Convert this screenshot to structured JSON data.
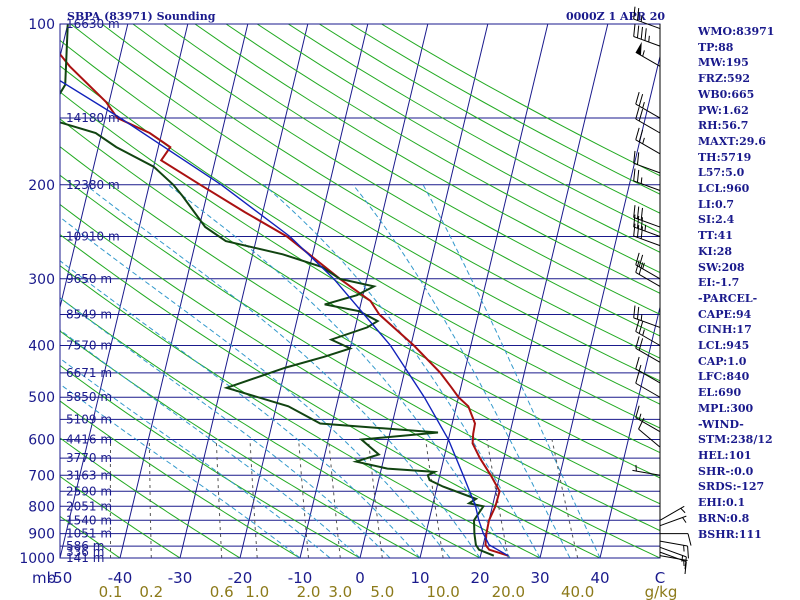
{
  "header": {
    "station_title": "SBPA (83971) Sounding",
    "time_title": "0000Z  1 APR 20"
  },
  "colors": {
    "isobar": "#1a1a8c",
    "isotherm": "#1a1a8c",
    "dry_adiabat": "#22aa22",
    "moist_adiabat": "#3399cc",
    "mixing_ratio": "#555555",
    "temperature": "#aa1111",
    "dewpoint": "#114411",
    "parcel": "#1122bb",
    "wind": "#000000"
  },
  "indices": [
    "WMO:83971",
    "TP:88",
    "MW:195",
    "FRZ:592",
    "WB0:665",
    "PW:1.62",
    "RH:56.7",
    "MAXT:29.6",
    "TH:5719",
    "L57:5.0",
    "LCL:960",
    "LI:0.7",
    "SI:2.4",
    "TT:41",
    "KI:28",
    "SW:208",
    "EI:-1.7",
    "-PARCEL-",
    "CAPE:94",
    "CINH:17",
    "LCL:945",
    "CAP:1.0",
    "LFC:840",
    "EL:690",
    "MPL:300",
    "-WIND-",
    "STM:238/12",
    "HEL:101",
    "SHR-:0.0",
    "SRDS:-127",
    "EHI:0.1",
    "BRN:0.8",
    "BSHR:111"
  ],
  "chart_data": {
    "type": "line",
    "diagram": "skew-T log-p",
    "title": "SBPA (83971) Sounding",
    "subtitle": "0000Z  1 APR 20",
    "x_axis": {
      "unit_label": "C",
      "range": [
        -50,
        50
      ],
      "ticks": [
        -50,
        -40,
        -30,
        -20,
        -10,
        0,
        10,
        20,
        30,
        40
      ],
      "tick_labels": [
        "-50",
        "-40",
        "-30",
        "-20",
        "-10",
        "0",
        "10",
        "20",
        "30",
        "40"
      ]
    },
    "y_axis": {
      "unit_label": "mb",
      "scale": "log",
      "range": [
        1000,
        100
      ],
      "labeled_ticks": [
        100,
        200,
        300,
        400,
        500,
        600,
        700,
        800,
        900,
        1000
      ]
    },
    "mixing_ratio_lines": {
      "unit_label": "g/kg",
      "values": [
        0.1,
        0.2,
        0.6,
        1.0,
        2.0,
        3.0,
        5.0,
        10.0,
        20.0,
        40.0
      ],
      "labels": [
        "0.1",
        "0.2",
        "0.6",
        "1.0",
        "2.0",
        "3.0",
        "5.0",
        "10.0",
        "20.0",
        "40.0"
      ]
    },
    "mandatory_heights": [
      {
        "p": 1000,
        "h": "141 m"
      },
      {
        "p": 975,
        "h": "336 m"
      },
      {
        "p": 950,
        "h": "586 m"
      },
      {
        "p": 900,
        "h": "1051 m"
      },
      {
        "p": 850,
        "h": "1540 m"
      },
      {
        "p": 800,
        "h": "2051 m"
      },
      {
        "p": 750,
        "h": "2590 m"
      },
      {
        "p": 700,
        "h": "3163 m"
      },
      {
        "p": 650,
        "h": "3770 m"
      },
      {
        "p": 600,
        "h": "4416 m"
      },
      {
        "p": 550,
        "h": "5109 m"
      },
      {
        "p": 500,
        "h": "5850 m"
      },
      {
        "p": 450,
        "h": "6671 m"
      },
      {
        "p": 400,
        "h": "7570 m"
      },
      {
        "p": 350,
        "h": "8549 m"
      },
      {
        "p": 300,
        "h": "9650 m"
      },
      {
        "p": 250,
        "h": "10910 m"
      },
      {
        "p": 200,
        "h": "12380 m"
      },
      {
        "p": 150,
        "h": "14180 m"
      },
      {
        "p": 100,
        "h": "16630 m"
      }
    ],
    "series": [
      {
        "key": "temperature",
        "points": [
          {
            "p": 990,
            "t": 24.6
          },
          {
            "p": 965,
            "t": 21.2
          },
          {
            "p": 945,
            "t": 20.4
          },
          {
            "p": 900,
            "t": 20.1
          },
          {
            "p": 850,
            "t": 20.0
          },
          {
            "p": 800,
            "t": 20.5
          },
          {
            "p": 750,
            "t": 20.6
          },
          {
            "p": 700,
            "t": 18.5
          },
          {
            "p": 650,
            "t": 16.0
          },
          {
            "p": 610,
            "t": 14.2
          },
          {
            "p": 585,
            "t": 13.9
          },
          {
            "p": 560,
            "t": 13.8
          },
          {
            "p": 520,
            "t": 12.0
          },
          {
            "p": 500,
            "t": 10.0
          },
          {
            "p": 480,
            "t": 8.5
          },
          {
            "p": 450,
            "t": 6.0
          },
          {
            "p": 400,
            "t": 0.5
          },
          {
            "p": 350,
            "t": -6.5
          },
          {
            "p": 330,
            "t": -8.5
          },
          {
            "p": 300,
            "t": -14.5
          },
          {
            "p": 275,
            "t": -19.5
          },
          {
            "p": 250,
            "t": -25.0
          },
          {
            "p": 225,
            "t": -33.0
          },
          {
            "p": 200,
            "t": -41.5
          },
          {
            "p": 180,
            "t": -49.0
          },
          {
            "p": 170,
            "t": -48.0
          },
          {
            "p": 160,
            "t": -52.0
          },
          {
            "p": 150,
            "t": -58.0
          },
          {
            "p": 140,
            "t": -60.5
          },
          {
            "p": 120,
            "t": -68.0
          },
          {
            "p": 110,
            "t": -71.5
          },
          {
            "p": 100,
            "t": -74.0
          }
        ]
      },
      {
        "key": "dewpoint",
        "points": [
          {
            "p": 990,
            "t": 22.2
          },
          {
            "p": 965,
            "t": 19.5
          },
          {
            "p": 945,
            "t": 18.8
          },
          {
            "p": 900,
            "t": 18.1
          },
          {
            "p": 850,
            "t": 17.5
          },
          {
            "p": 800,
            "t": 18.5
          },
          {
            "p": 790,
            "t": 16.0
          },
          {
            "p": 775,
            "t": 17.0
          },
          {
            "p": 735,
            "t": 11.0
          },
          {
            "p": 715,
            "t": 8.5
          },
          {
            "p": 700,
            "t": 8.0
          },
          {
            "p": 690,
            "t": 9.0
          },
          {
            "p": 680,
            "t": 1.0
          },
          {
            "p": 660,
            "t": -4.5
          },
          {
            "p": 640,
            "t": -1.0
          },
          {
            "p": 600,
            "t": -4.5
          },
          {
            "p": 582,
            "t": 8.0
          },
          {
            "p": 560,
            "t": -12.0
          },
          {
            "p": 520,
            "t": -18.0
          },
          {
            "p": 480,
            "t": -29.0
          },
          {
            "p": 440,
            "t": -20.0
          },
          {
            "p": 420,
            "t": -14.0
          },
          {
            "p": 405,
            "t": -10.0
          },
          {
            "p": 390,
            "t": -13.5
          },
          {
            "p": 370,
            "t": -8.0
          },
          {
            "p": 360,
            "t": -6.5
          },
          {
            "p": 345,
            "t": -10.0
          },
          {
            "p": 335,
            "t": -16.0
          },
          {
            "p": 322,
            "t": -11.0
          },
          {
            "p": 310,
            "t": -8.5
          },
          {
            "p": 300,
            "t": -14.5
          },
          {
            "p": 285,
            "t": -18.0
          },
          {
            "p": 270,
            "t": -25.0
          },
          {
            "p": 255,
            "t": -35.0
          },
          {
            "p": 240,
            "t": -39.0
          },
          {
            "p": 210,
            "t": -44.0
          },
          {
            "p": 200,
            "t": -46.0
          },
          {
            "p": 185,
            "t": -50.0
          },
          {
            "p": 170,
            "t": -57.0
          },
          {
            "p": 160,
            "t": -61.0
          },
          {
            "p": 150,
            "t": -70.0
          },
          {
            "p": 130,
            "t": -68.0
          },
          {
            "p": 100,
            "t": -70.0
          }
        ]
      },
      {
        "key": "parcel",
        "points": [
          {
            "p": 990,
            "t": 24.6
          },
          {
            "p": 945,
            "t": 21.0
          },
          {
            "p": 900,
            "t": 19.6
          },
          {
            "p": 850,
            "t": 18.3
          },
          {
            "p": 800,
            "t": 17.2
          },
          {
            "p": 700,
            "t": 13.9
          },
          {
            "p": 600,
            "t": 10.0
          },
          {
            "p": 500,
            "t": 4.3
          },
          {
            "p": 400,
            "t": -3.4
          },
          {
            "p": 300,
            "t": -15.5
          },
          {
            "p": 250,
            "t": -24.5
          },
          {
            "p": 200,
            "t": -38.0
          },
          {
            "p": 150,
            "t": -57.5
          },
          {
            "p": 120,
            "t": -73.5
          }
        ]
      }
    ],
    "winds": [
      {
        "p": 990,
        "dir": 100,
        "spd": 5
      },
      {
        "p": 975,
        "dir": 110,
        "spd": 10
      },
      {
        "p": 955,
        "dir": 110,
        "spd": 15
      },
      {
        "p": 930,
        "dir": 100,
        "spd": 15
      },
      {
        "p": 900,
        "dir": 90,
        "spd": 10
      },
      {
        "p": 870,
        "dir": 70,
        "spd": 5
      },
      {
        "p": 850,
        "dir": 60,
        "spd": 5
      },
      {
        "p": 700,
        "dir": 280,
        "spd": 5
      },
      {
        "p": 620,
        "dir": 310,
        "spd": 10
      },
      {
        "p": 580,
        "dir": 300,
        "spd": 15
      },
      {
        "p": 500,
        "dir": 300,
        "spd": 10
      },
      {
        "p": 470,
        "dir": 300,
        "spd": 15
      },
      {
        "p": 430,
        "dir": 300,
        "spd": 20
      },
      {
        "p": 400,
        "dir": 300,
        "spd": 25
      },
      {
        "p": 370,
        "dir": 290,
        "spd": 25
      },
      {
        "p": 310,
        "dir": 300,
        "spd": 20
      },
      {
        "p": 300,
        "dir": 300,
        "spd": 25
      },
      {
        "p": 260,
        "dir": 290,
        "spd": 30
      },
      {
        "p": 250,
        "dir": 290,
        "spd": 35
      },
      {
        "p": 240,
        "dir": 290,
        "spd": 30
      },
      {
        "p": 205,
        "dir": 290,
        "spd": 25
      },
      {
        "p": 190,
        "dir": 290,
        "spd": 20
      },
      {
        "p": 175,
        "dir": 300,
        "spd": 25
      },
      {
        "p": 160,
        "dir": 300,
        "spd": 20
      },
      {
        "p": 150,
        "dir": 300,
        "spd": 25
      },
      {
        "p": 120,
        "dir": 300,
        "spd": 55
      },
      {
        "p": 110,
        "dir": 290,
        "spd": 45
      },
      {
        "p": 102,
        "dir": 290,
        "spd": 25
      }
    ]
  }
}
